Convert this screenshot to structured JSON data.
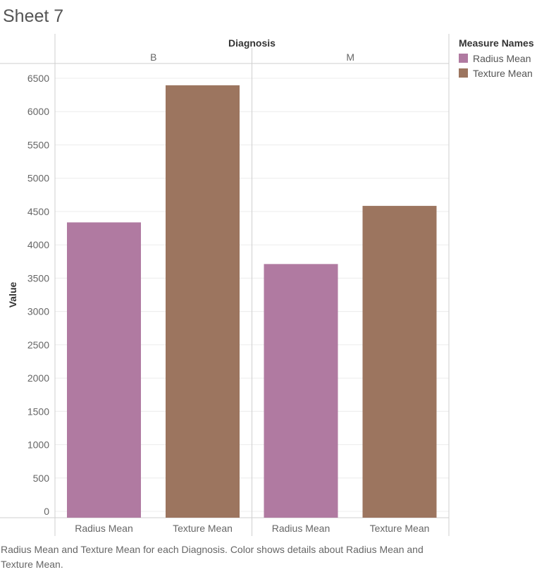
{
  "sheet": {
    "title": "Sheet 7",
    "caption": "Radius Mean and Texture Mean for each Diagnosis.  Color shows details about Radius Mean and Texture Mean."
  },
  "legend": {
    "title": "Measure Names",
    "items": [
      {
        "label": "Radius Mean",
        "color": "#b07aa1"
      },
      {
        "label": "Texture Mean",
        "color": "#9c755f"
      }
    ]
  },
  "chart_data": {
    "type": "bar",
    "title": "",
    "column_header": "Diagnosis",
    "panels": [
      "B",
      "M"
    ],
    "categories": [
      "Radius Mean",
      "Texture Mean"
    ],
    "series": [
      {
        "name": "B",
        "values": [
          4337,
          6395
        ]
      },
      {
        "name": "M",
        "values": [
          3712,
          4585
        ]
      }
    ],
    "colors": [
      "#b07aa1",
      "#9c755f"
    ],
    "ylabel": "Value",
    "ylim": [
      0,
      6500
    ],
    "yticks": [
      0,
      500,
      1000,
      1500,
      2000,
      2500,
      3000,
      3500,
      4000,
      4500,
      5000,
      5500,
      6000,
      6500
    ],
    "grid": true,
    "legend_position": "right"
  }
}
